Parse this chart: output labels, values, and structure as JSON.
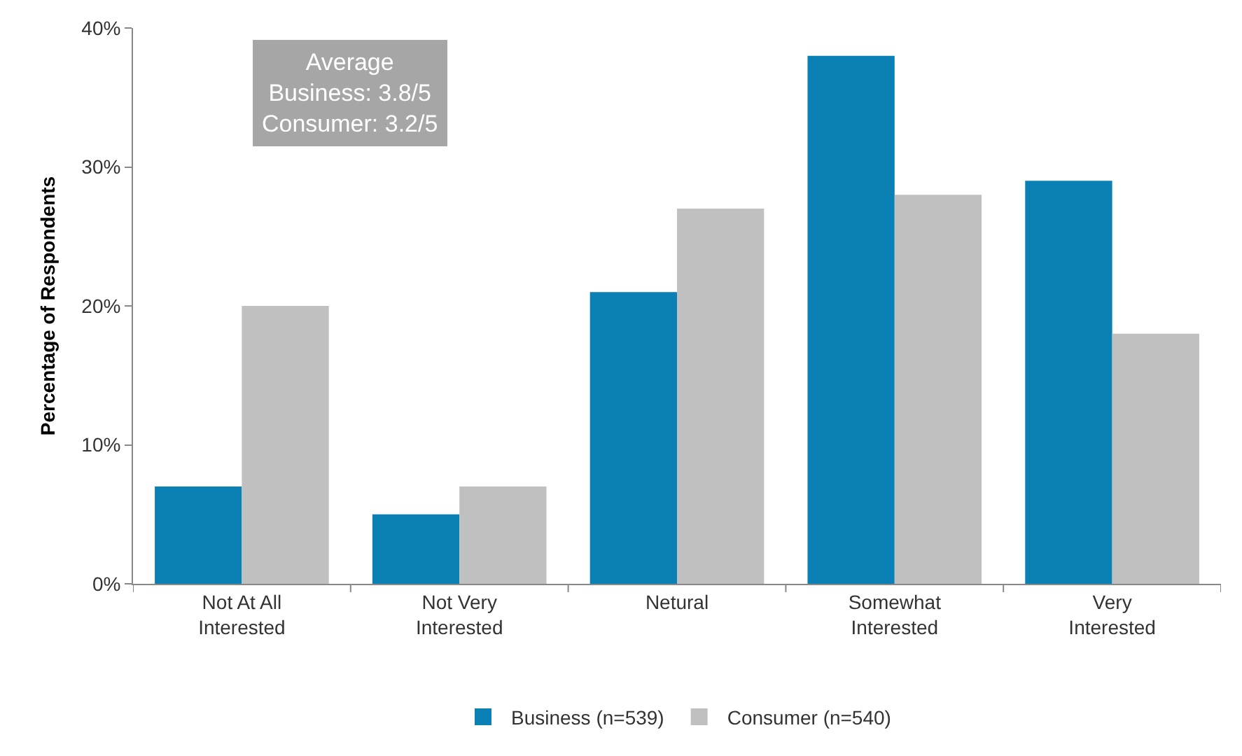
{
  "chart_data": {
    "type": "bar",
    "ylabel": "Percentage of Respondents",
    "categories": [
      "Not At All\nInterested",
      "Not Very\nInterested",
      "Netural",
      "Somewhat\nInterested",
      "Very\nInterested"
    ],
    "series": [
      {
        "name": "Business (n=539)",
        "color": "#0b80b4",
        "values": [
          7,
          5,
          21,
          38,
          29
        ]
      },
      {
        "name": "Consumer (n=540)",
        "color": "#c0c0c0",
        "values": [
          20,
          7,
          27,
          28,
          18
        ]
      }
    ],
    "ylim": [
      0,
      40
    ],
    "yticks": [
      {
        "value": 0,
        "label": "0%"
      },
      {
        "value": 10,
        "label": "10%"
      },
      {
        "value": 20,
        "label": "20%"
      },
      {
        "value": 30,
        "label": "30%"
      },
      {
        "value": 40,
        "label": "40%"
      }
    ],
    "legend": "bottom",
    "annotations": [
      "Average\nBusiness: 3.8/5\nConsumer: 3.2/5"
    ]
  }
}
